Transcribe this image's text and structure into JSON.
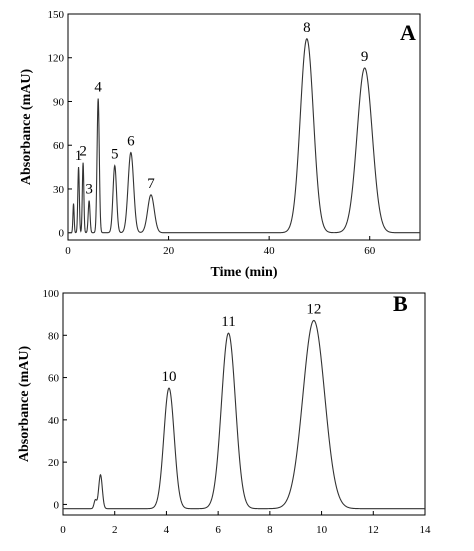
{
  "chart_data": [
    {
      "type": "line",
      "panel": "A",
      "xlabel": "Time (min)",
      "ylabel": "Absorbance (mAU)",
      "xlim": [
        0,
        70
      ],
      "ylim": [
        -5,
        150
      ],
      "x_ticks": [
        0,
        20,
        40,
        60
      ],
      "y_ticks": [
        0,
        30,
        60,
        90,
        120,
        150
      ],
      "baseline": 0,
      "grid": false,
      "legend": "none",
      "peaks": [
        {
          "label": "",
          "x": 1.1,
          "y": 20,
          "sigma": 0.12
        },
        {
          "label": "1",
          "x": 2.1,
          "y": 45,
          "sigma": 0.15
        },
        {
          "label": "2",
          "x": 3.0,
          "y": 48,
          "sigma": 0.15
        },
        {
          "label": "3",
          "x": 4.2,
          "y": 22,
          "sigma": 0.18
        },
        {
          "label": "4",
          "x": 6.0,
          "y": 92,
          "sigma": 0.22
        },
        {
          "label": "5",
          "x": 9.3,
          "y": 46,
          "sigma": 0.35
        },
        {
          "label": "6",
          "x": 12.5,
          "y": 55,
          "sigma": 0.55
        },
        {
          "label": "7",
          "x": 16.5,
          "y": 26,
          "sigma": 0.65
        },
        {
          "label": "8",
          "x": 47.5,
          "y": 133,
          "sigma": 1.3
        },
        {
          "label": "9",
          "x": 59.0,
          "y": 113,
          "sigma": 1.5
        }
      ]
    },
    {
      "type": "line",
      "panel": "B",
      "xlabel": "",
      "ylabel": "Absorbance (mAU)",
      "xlim": [
        0,
        14
      ],
      "ylim": [
        -5,
        100
      ],
      "x_ticks": [
        0,
        2,
        4,
        6,
        8,
        10,
        12,
        14
      ],
      "y_ticks": [
        0,
        20,
        40,
        60,
        80,
        100
      ],
      "baseline": -2,
      "grid": false,
      "legend": "none",
      "peaks": [
        {
          "label": "",
          "x": 1.25,
          "y": 2,
          "sigma": 0.05
        },
        {
          "label": "",
          "x": 1.45,
          "y": 14,
          "sigma": 0.07
        },
        {
          "label": "10",
          "x": 4.1,
          "y": 55,
          "sigma": 0.2
        },
        {
          "label": "11",
          "x": 6.4,
          "y": 81,
          "sigma": 0.27
        },
        {
          "label": "12",
          "x": 9.7,
          "y": 87,
          "sigma": 0.42
        }
      ]
    }
  ]
}
